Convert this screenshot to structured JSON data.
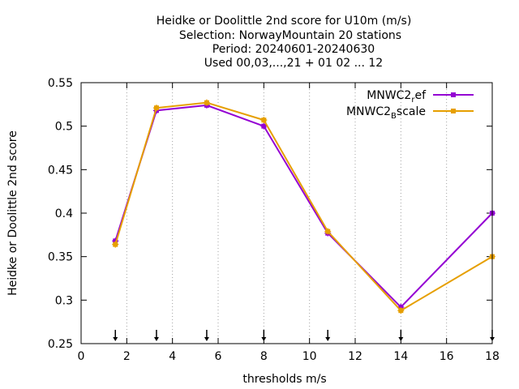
{
  "chart_data": {
    "type": "line",
    "title_lines": [
      "Heidke or Doolittle 2nd score  for U10m (m/s)",
      "Selection: NorwayMountain     20 stations",
      "Period: 20240601-20240630",
      "Used 00,03,...,21 + 01 02 ... 12"
    ],
    "xlabel": "thresholds m/s",
    "ylabel": "Heidke or Doolittle 2nd score",
    "xlim": [
      0,
      18
    ],
    "ylim": [
      0.25,
      0.55
    ],
    "xticks": [
      0,
      2,
      4,
      6,
      8,
      10,
      12,
      14,
      16,
      18
    ],
    "yticks": [
      0.25,
      0.3,
      0.35,
      0.4,
      0.45,
      0.5,
      0.55
    ],
    "xtick_labels": [
      "0",
      "2",
      "4",
      "6",
      "8",
      "10",
      "12",
      "14",
      "16",
      "18"
    ],
    "ytick_labels": [
      "0.25",
      "0.3",
      "0.35",
      "0.4",
      "0.45",
      "0.5",
      "0.55"
    ],
    "grid": "vertical dotted lines at x tick positions",
    "legend_position": "top-right",
    "arrow_markers_x": [
      1.5,
      3.3,
      5.5,
      8.0,
      10.8,
      14.0,
      18.0
    ],
    "x": [
      1.5,
      3.3,
      5.5,
      8.0,
      10.8,
      14.0,
      18.0
    ],
    "series": [
      {
        "name_base": "MNWC2",
        "name_sub": "r",
        "name_rest": "ef",
        "color": "#9400d3",
        "values": [
          0.368,
          0.518,
          0.524,
          0.5,
          0.377,
          0.292,
          0.4
        ]
      },
      {
        "name_base": "MNWC2",
        "name_sub": "B",
        "name_rest": "scale",
        "color": "#e69f00",
        "values": [
          0.364,
          0.521,
          0.527,
          0.507,
          0.379,
          0.288,
          0.35
        ]
      }
    ]
  }
}
